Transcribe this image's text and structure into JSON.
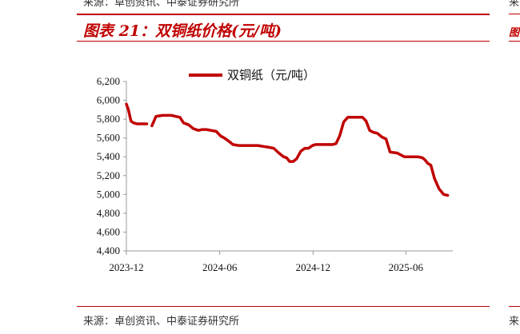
{
  "header": {
    "source_text": "来源：卓创资讯、中泰证券研究所",
    "figure_title": "图表 21：双铜纸价格(元/吨)"
  },
  "footer": {
    "source_text": "来源：卓创资讯、中泰证券研究所"
  },
  "edge": {
    "top_fragment": "来",
    "title_fragment": "图",
    "bottom_fragment": "来"
  },
  "colors": {
    "accent": "#c00000",
    "series": "#c00000",
    "axis": "#999999"
  },
  "chart_data": {
    "type": "line",
    "title": "",
    "xlabel": "",
    "ylabel": "",
    "legend_position": "top",
    "grid": false,
    "ylim": [
      4400,
      6200
    ],
    "y_ticks": [
      4400,
      4600,
      4800,
      5000,
      5200,
      5400,
      5600,
      5800,
      6000,
      6200
    ],
    "y_tick_labels": [
      "4,400",
      "4,600",
      "4,800",
      "5,000",
      "5,200",
      "5,400",
      "5,600",
      "5,800",
      "6,000",
      "6,200"
    ],
    "x_tick_labels": [
      "2023-12",
      "2024-06",
      "2024-12",
      "2025-06"
    ],
    "x_tick_dates": [
      "2023-12-01",
      "2024-06-01",
      "2024-12-01",
      "2025-06-01"
    ],
    "xlim": [
      "2023-12-01",
      "2025-09-01"
    ],
    "series": [
      {
        "name": "双铜纸（元/吨）",
        "segments": [
          {
            "x": [
              "2023-12-01",
              "2023-12-05",
              "2023-12-10",
              "2023-12-15",
              "2023-12-22",
              "2024-01-01",
              "2024-01-10"
            ],
            "y": [
              5960,
              5900,
              5780,
              5760,
              5750,
              5750,
              5750
            ]
          },
          {
            "x": [
              "2024-01-20",
              "2024-01-28",
              "2024-02-10",
              "2024-02-28",
              "2024-03-06",
              "2024-03-15",
              "2024-03-22",
              "2024-04-01",
              "2024-04-10",
              "2024-04-20",
              "2024-04-28",
              "2024-05-06",
              "2024-05-15",
              "2024-05-25",
              "2024-06-03",
              "2024-06-10",
              "2024-06-20",
              "2024-06-27",
              "2024-07-08",
              "2024-07-18",
              "2024-08-01",
              "2024-08-15",
              "2024-08-26",
              "2024-09-06",
              "2024-09-15",
              "2024-09-25",
              "2024-10-04",
              "2024-10-10",
              "2024-10-16",
              "2024-10-23",
              "2024-10-30",
              "2024-11-07",
              "2024-11-15",
              "2024-11-22",
              "2024-11-30",
              "2024-12-06",
              "2024-12-15",
              "2024-12-22",
              "2025-01-01",
              "2025-01-08",
              "2025-01-15",
              "2025-01-22",
              "2025-01-30",
              "2025-02-07",
              "2025-02-15",
              "2025-02-22",
              "2025-03-01",
              "2025-03-08",
              "2025-03-15",
              "2025-03-22",
              "2025-03-29",
              "2025-04-06",
              "2025-04-15",
              "2025-04-23",
              "2025-05-01",
              "2025-05-15",
              "2025-05-29",
              "2025-06-10",
              "2025-06-17",
              "2025-06-24",
              "2025-07-03",
              "2025-07-08",
              "2025-07-14",
              "2025-07-20",
              "2025-07-27",
              "2025-08-05",
              "2025-08-14",
              "2025-08-22"
            ],
            "y": [
              5730,
              5830,
              5840,
              5840,
              5830,
              5820,
              5760,
              5740,
              5700,
              5680,
              5690,
              5690,
              5680,
              5670,
              5620,
              5600,
              5560,
              5530,
              5520,
              5520,
              5520,
              5520,
              5510,
              5500,
              5490,
              5440,
              5400,
              5390,
              5350,
              5350,
              5380,
              5460,
              5490,
              5490,
              5520,
              5530,
              5530,
              5530,
              5530,
              5530,
              5540,
              5620,
              5770,
              5820,
              5820,
              5820,
              5820,
              5820,
              5780,
              5680,
              5660,
              5650,
              5610,
              5590,
              5450,
              5440,
              5400,
              5400,
              5400,
              5400,
              5390,
              5370,
              5330,
              5310,
              5170,
              5060,
              5000,
              4990
            ]
          }
        ]
      }
    ]
  }
}
